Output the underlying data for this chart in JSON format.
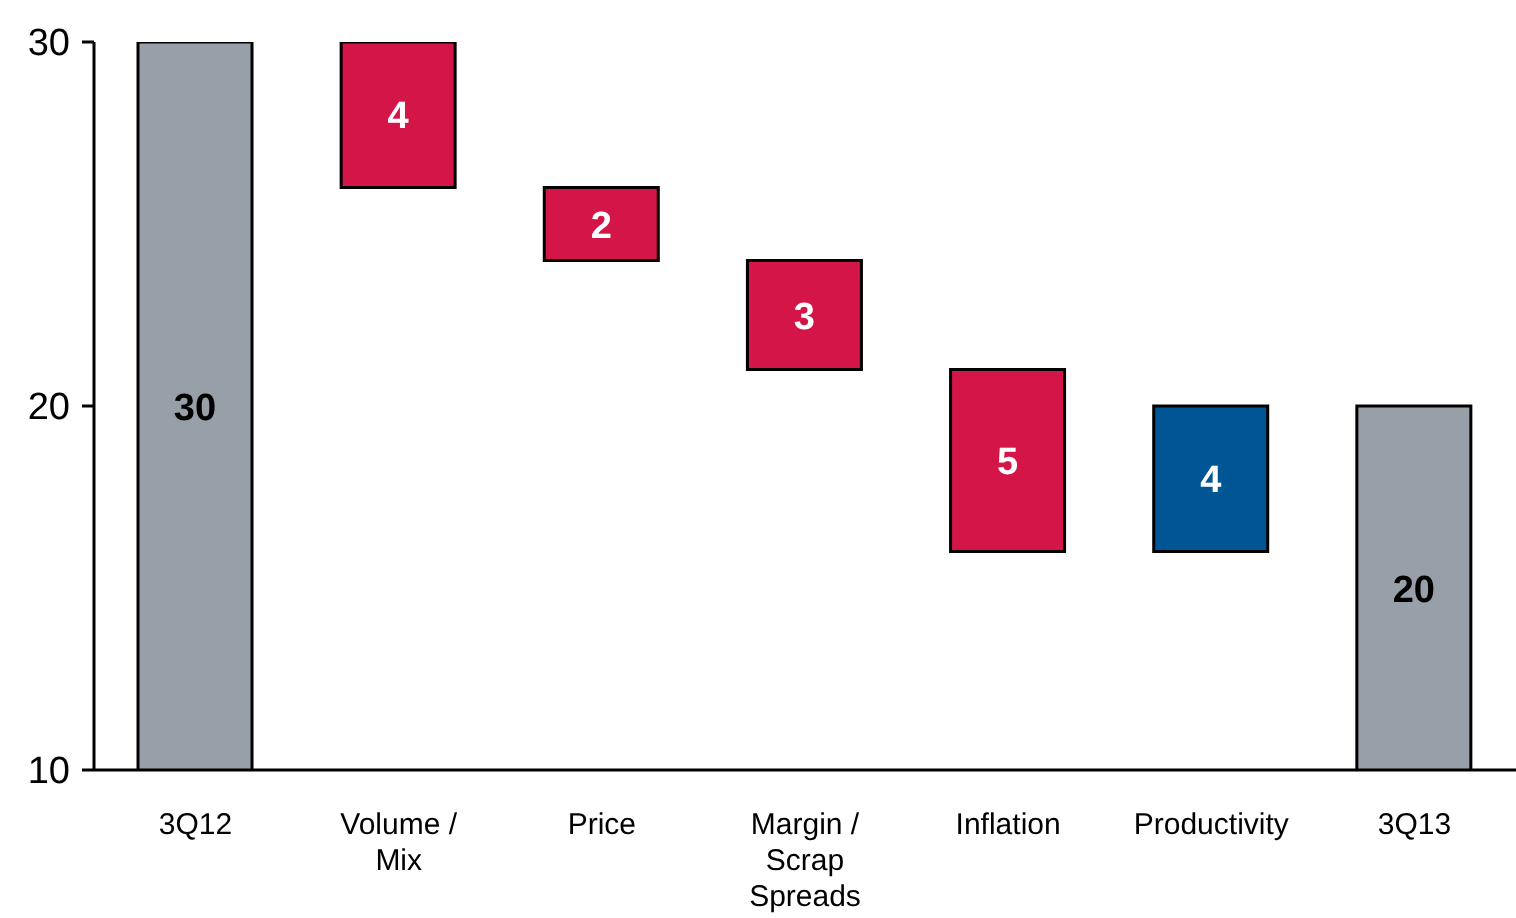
{
  "chart_data": {
    "type": "bar",
    "categories": [
      "3Q12",
      "Volume / Mix",
      "Price",
      "Margin / Scrap Spreads",
      "Inflation",
      "Productivity",
      "3Q13"
    ],
    "values": [
      30,
      4,
      2,
      3,
      5,
      4,
      20
    ],
    "base": [
      null,
      26,
      24,
      21,
      16,
      16,
      null
    ],
    "colors": [
      "#97a0a8",
      "#d41548",
      "#d41548",
      "#d41548",
      "#d41548",
      "#005595",
      "#97a0a8"
    ],
    "ylim": [
      10,
      30
    ],
    "yticks": [
      10,
      20,
      30
    ],
    "data_labels": true
  }
}
